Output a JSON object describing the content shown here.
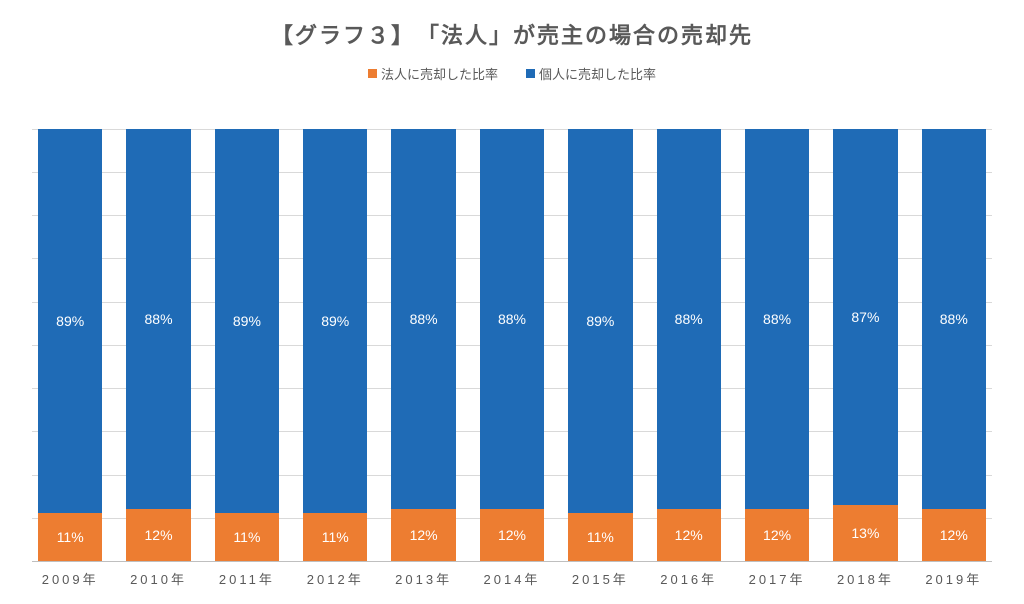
{
  "chart": {
    "type": "stacked-bar-100pct",
    "title": "【グラフ３】　「法人」が売主の場合の売却先",
    "title_fontsize": 22,
    "title_color": "#595959",
    "legend": {
      "series1": {
        "label": "法人に売却した比率",
        "color": "#ed7d31"
      },
      "series2": {
        "label": "個人に売却した比率",
        "color": "#1f6bb6"
      },
      "fontsize": 13,
      "label_color": "#595959"
    },
    "categories": [
      "2009年",
      "2010年",
      "2011年",
      "2012年",
      "2013年",
      "2014年",
      "2015年",
      "2016年",
      "2017年",
      "2018年",
      "2019年"
    ],
    "series1_values": [
      11,
      12,
      11,
      11,
      12,
      12,
      11,
      12,
      12,
      13,
      12
    ],
    "series2_values": [
      89,
      88,
      89,
      89,
      88,
      88,
      89,
      88,
      88,
      87,
      88
    ],
    "value_suffix": "%",
    "data_label_color": "#ffffff",
    "data_label_fontsize": 14,
    "ylim": [
      0,
      100
    ],
    "top_gap_pct": 8,
    "grid": {
      "ticks": [
        0,
        10,
        20,
        30,
        40,
        50,
        60,
        70,
        80,
        90,
        100
      ],
      "show_lines": true,
      "line_color": "#d9d9d9",
      "baseline_color": "#bfbfbf"
    },
    "xaxis_label_fontsize": 13,
    "xaxis_label_color": "#595959",
    "bar_width_ratio": 0.86,
    "background_color": "#ffffff"
  }
}
